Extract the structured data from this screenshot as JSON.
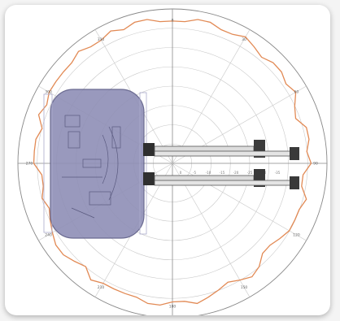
{
  "diagram": {
    "title": "",
    "colors": {
      "frame": "#ffffff",
      "grid": "#c9c9c9",
      "axis": "#888888",
      "pattern": "#e28a55",
      "housing_fill": "#8f8fb6",
      "housing_stroke": "#5c5c86",
      "connector": "#2f2f2f"
    },
    "angle_labels": [
      "0",
      "30",
      "60",
      "90",
      "120",
      "150",
      "180",
      "210",
      "240",
      "270",
      "300",
      "330"
    ],
    "radius_labels": [
      "0",
      "-5",
      "-10",
      "-15",
      "-20",
      "-25",
      "-30",
      "-35"
    ],
    "pattern_levels_db": [
      -2,
      -2,
      -1,
      -1,
      -2,
      -2,
      -1,
      -2,
      -3,
      -2,
      -2,
      -3,
      -2,
      -4,
      -5,
      -3,
      -3,
      -4,
      -3,
      -5,
      -5,
      -3,
      -4,
      -4,
      -4,
      -5,
      -6,
      -6,
      -4,
      -3,
      -4,
      -5,
      -4,
      -3,
      -2,
      -3,
      -3,
      -2,
      -2,
      -3,
      -3,
      -3,
      -3,
      -2,
      -4,
      -3,
      -2,
      -2,
      -3,
      -4,
      -5,
      -4,
      -5,
      -5,
      -3,
      -3,
      -3,
      -4,
      -2,
      -3,
      -2,
      -2,
      -2,
      -2,
      -1,
      -2,
      -2,
      -1,
      -2,
      -1,
      -1,
      -2
    ]
  }
}
